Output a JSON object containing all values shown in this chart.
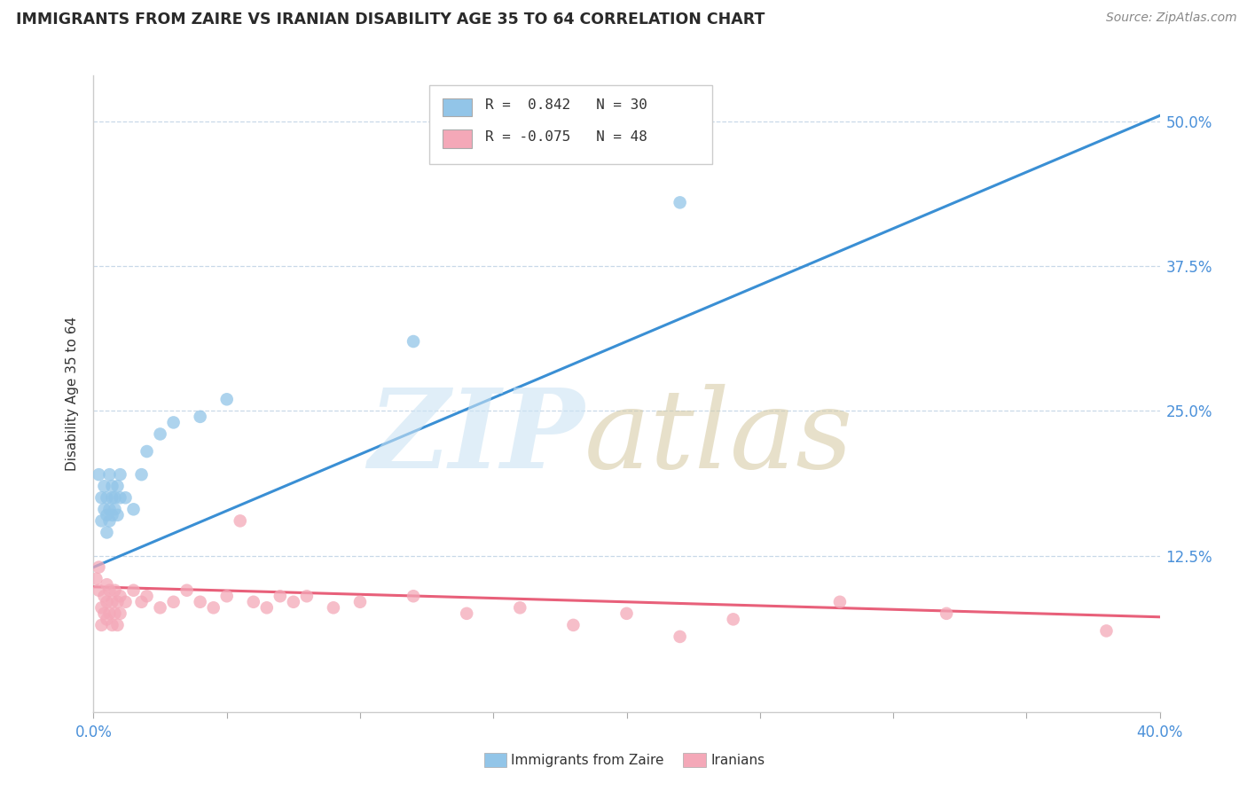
{
  "title": "IMMIGRANTS FROM ZAIRE VS IRANIAN DISABILITY AGE 35 TO 64 CORRELATION CHART",
  "source": "Source: ZipAtlas.com",
  "ylabel": "Disability Age 35 to 64",
  "y_tick_labels": [
    "12.5%",
    "25.0%",
    "37.5%",
    "50.0%"
  ],
  "y_tick_values": [
    0.125,
    0.25,
    0.375,
    0.5
  ],
  "x_range": [
    0.0,
    0.4
  ],
  "y_range": [
    -0.01,
    0.54
  ],
  "x_tick_values": [
    0.0,
    0.05,
    0.1,
    0.15,
    0.2,
    0.25,
    0.3,
    0.35,
    0.4
  ],
  "legend_r1": "R =  0.842   N = 30",
  "legend_r2": "R = -0.075   N = 48",
  "legend_labels": [
    "Immigrants from Zaire",
    "Iranians"
  ],
  "zaire_color": "#92c5e8",
  "iranian_color": "#f4a8b8",
  "trend_zaire_color": "#3a8fd4",
  "trend_iranian_color": "#e8607a",
  "watermark_zip": "ZIP",
  "watermark_atlas": "atlas",
  "zaire_points": [
    [
      0.002,
      0.195
    ],
    [
      0.003,
      0.175
    ],
    [
      0.003,
      0.155
    ],
    [
      0.004,
      0.165
    ],
    [
      0.004,
      0.185
    ],
    [
      0.005,
      0.175
    ],
    [
      0.005,
      0.16
    ],
    [
      0.005,
      0.145
    ],
    [
      0.006,
      0.195
    ],
    [
      0.006,
      0.165
    ],
    [
      0.006,
      0.155
    ],
    [
      0.007,
      0.185
    ],
    [
      0.007,
      0.175
    ],
    [
      0.007,
      0.16
    ],
    [
      0.008,
      0.175
    ],
    [
      0.008,
      0.165
    ],
    [
      0.009,
      0.185
    ],
    [
      0.009,
      0.16
    ],
    [
      0.01,
      0.175
    ],
    [
      0.01,
      0.195
    ],
    [
      0.012,
      0.175
    ],
    [
      0.015,
      0.165
    ],
    [
      0.018,
      0.195
    ],
    [
      0.02,
      0.215
    ],
    [
      0.025,
      0.23
    ],
    [
      0.03,
      0.24
    ],
    [
      0.04,
      0.245
    ],
    [
      0.05,
      0.26
    ],
    [
      0.12,
      0.31
    ],
    [
      0.22,
      0.43
    ]
  ],
  "iranian_points": [
    [
      0.001,
      0.105
    ],
    [
      0.002,
      0.115
    ],
    [
      0.002,
      0.095
    ],
    [
      0.003,
      0.08
    ],
    [
      0.003,
      0.065
    ],
    [
      0.004,
      0.09
    ],
    [
      0.004,
      0.075
    ],
    [
      0.005,
      0.1
    ],
    [
      0.005,
      0.085
    ],
    [
      0.005,
      0.07
    ],
    [
      0.006,
      0.095
    ],
    [
      0.006,
      0.075
    ],
    [
      0.007,
      0.085
    ],
    [
      0.007,
      0.065
    ],
    [
      0.008,
      0.095
    ],
    [
      0.008,
      0.075
    ],
    [
      0.009,
      0.085
    ],
    [
      0.009,
      0.065
    ],
    [
      0.01,
      0.09
    ],
    [
      0.01,
      0.075
    ],
    [
      0.012,
      0.085
    ],
    [
      0.015,
      0.095
    ],
    [
      0.018,
      0.085
    ],
    [
      0.02,
      0.09
    ],
    [
      0.025,
      0.08
    ],
    [
      0.03,
      0.085
    ],
    [
      0.035,
      0.095
    ],
    [
      0.04,
      0.085
    ],
    [
      0.045,
      0.08
    ],
    [
      0.05,
      0.09
    ],
    [
      0.055,
      0.155
    ],
    [
      0.06,
      0.085
    ],
    [
      0.065,
      0.08
    ],
    [
      0.07,
      0.09
    ],
    [
      0.075,
      0.085
    ],
    [
      0.08,
      0.09
    ],
    [
      0.09,
      0.08
    ],
    [
      0.1,
      0.085
    ],
    [
      0.12,
      0.09
    ],
    [
      0.14,
      0.075
    ],
    [
      0.16,
      0.08
    ],
    [
      0.18,
      0.065
    ],
    [
      0.2,
      0.075
    ],
    [
      0.22,
      0.055
    ],
    [
      0.24,
      0.07
    ],
    [
      0.28,
      0.085
    ],
    [
      0.32,
      0.075
    ],
    [
      0.38,
      0.06
    ]
  ],
  "zaire_trend": [
    0.0,
    0.4,
    0.115,
    0.505
  ],
  "iranian_trend": [
    0.0,
    0.4,
    0.098,
    0.072
  ]
}
